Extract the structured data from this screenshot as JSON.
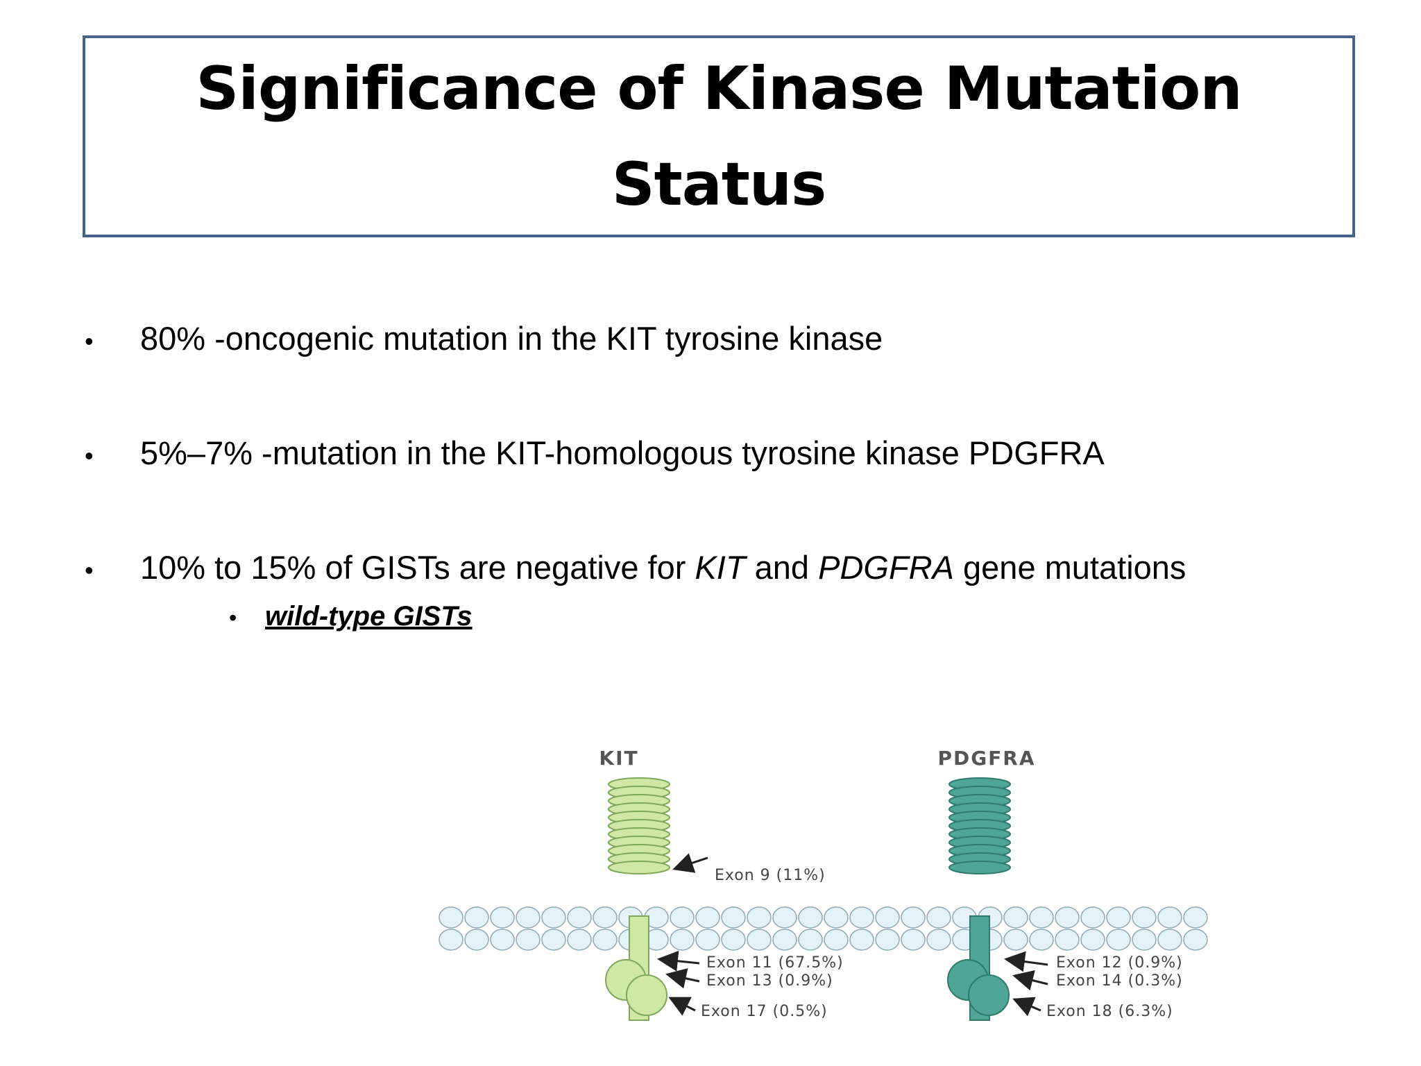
{
  "title_line1": "Significance of Kinase Mutation",
  "title_line2": "Status",
  "bullets": [
    {
      "text": "80% -oncogenic mutation in the KIT tyrosine kinase"
    },
    {
      "text": "5%–7% -mutation in the KIT-homologous tyrosine kinase PDGFRA"
    },
    {
      "part1": "10% to 15% of GISTs are negative for ",
      "kit": "KIT",
      "part2": " and ",
      "pdgfra": "PDGFRA",
      "part3": " gene mutations"
    }
  ],
  "sub_bullet": "wild-type GISTs",
  "bullet_glyph": "•",
  "diagram": {
    "kit_label": "KIT",
    "pdgfra_label": "PDGFRA",
    "kit_exons": [
      "Exon 9 (11%)",
      "Exon 11 (67.5%)",
      "Exon 13 (0.9%)",
      "Exon 17 (0.5%)"
    ],
    "pdgfra_exons": [
      "Exon 12 (0.9%)",
      "Exon 14 (0.3%)",
      "Exon 18 (6.3%)"
    ],
    "colors": {
      "kit": "#cfe8a6",
      "kit_stroke": "#7fa85a",
      "pdgfra": "#4fa596",
      "pdgfra_stroke": "#2e7a6c",
      "membrane": "#e4f1f6",
      "membrane_stroke": "#8fa9b5",
      "title_border": "#44628a"
    }
  }
}
